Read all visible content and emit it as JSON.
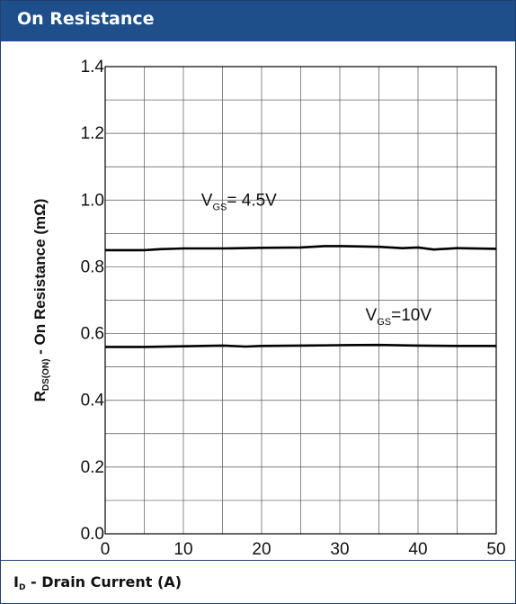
{
  "header": {
    "title": "On Resistance"
  },
  "footer": {
    "xlabel_main": "I",
    "xlabel_sub": "D",
    "xlabel_rest": " - Drain Current (A)"
  },
  "ylabel": {
    "main": "R",
    "sub": "DS(ON)",
    "rest": " - On Resistance (mΩ)"
  },
  "chart_data": {
    "type": "line",
    "title": "On Resistance",
    "xlabel": "ID - Drain Current (A)",
    "ylabel": "RDS(ON) - On Resistance (mΩ)",
    "xlim": [
      0,
      50
    ],
    "ylim": [
      0.0,
      1.4
    ],
    "x_ticks": [
      "0",
      "10",
      "20",
      "30",
      "40",
      "50"
    ],
    "y_ticks": [
      "0.0",
      "0.2",
      "0.4",
      "0.6",
      "0.8",
      "1.0",
      "1.2",
      "1.4"
    ],
    "grid": true,
    "series": [
      {
        "name": "VGS= 4.5V",
        "label_main": "V",
        "label_sub": "GS",
        "label_rest": "= 4.5V",
        "x": [
          0,
          5,
          7,
          10,
          15,
          20,
          25,
          28,
          30,
          35,
          38,
          40,
          42,
          45,
          50
        ],
        "y": [
          0.85,
          0.85,
          0.853,
          0.855,
          0.855,
          0.857,
          0.858,
          0.862,
          0.862,
          0.86,
          0.856,
          0.858,
          0.852,
          0.856,
          0.854
        ]
      },
      {
        "name": "VGS=10V",
        "label_main": "V",
        "label_sub": "GS",
        "label_rest": "=10V",
        "x": [
          0,
          5,
          10,
          15,
          18,
          20,
          25,
          30,
          35,
          40,
          45,
          50
        ],
        "y": [
          0.56,
          0.56,
          0.562,
          0.564,
          0.561,
          0.563,
          0.564,
          0.565,
          0.566,
          0.564,
          0.563,
          0.563
        ]
      }
    ]
  }
}
